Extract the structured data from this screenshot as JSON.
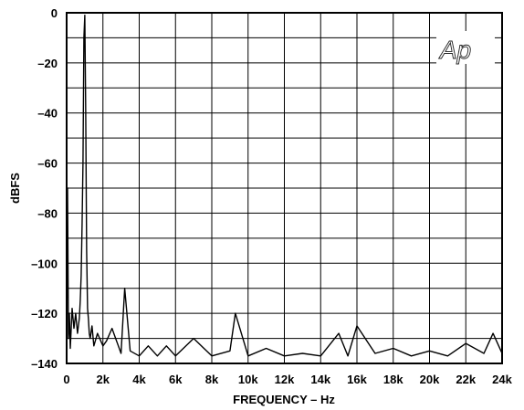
{
  "chart_data": {
    "type": "line",
    "title": "",
    "xlabel": "FREQUENCY – Hz",
    "ylabel": "dBFS",
    "xlim": [
      0,
      24000
    ],
    "ylim": [
      -140,
      0
    ],
    "x_tick_labels": [
      "0",
      "2k",
      "4k",
      "6k",
      "8k",
      "10k",
      "12k",
      "14k",
      "16k",
      "18k",
      "20k",
      "22k",
      "24k"
    ],
    "y_tick_labels": [
      "0",
      "–20",
      "–40",
      "–60",
      "–80",
      "–100",
      "–120",
      "–140"
    ],
    "grid": true,
    "logo_text": "Ap",
    "series": [
      {
        "x": [
          0,
          50,
          100,
          150,
          200,
          300,
          400,
          500,
          600,
          700,
          750,
          800,
          850,
          900,
          950,
          1000,
          1050,
          1100,
          1150,
          1200,
          1250,
          1300,
          1400,
          1500,
          1700,
          2000,
          2200,
          2500,
          3000,
          3200,
          3500,
          4000,
          4500,
          5000,
          5500,
          6000,
          7000,
          8000,
          9000,
          9300,
          10000,
          11000,
          12000,
          13000,
          14000,
          15000,
          15500,
          16000,
          17000,
          18000,
          19000,
          20000,
          21000,
          22000,
          23000,
          23500,
          24000
        ],
        "y": [
          -134,
          -70,
          -130,
          -120,
          -134,
          -118,
          -126,
          -120,
          -128,
          -122,
          -115,
          -105,
          -85,
          -60,
          -10,
          -1,
          -40,
          -95,
          -118,
          -122,
          -128,
          -130,
          -125,
          -133,
          -128,
          -133,
          -131,
          -126,
          -136,
          -110,
          -135,
          -137,
          -133,
          -137,
          -133,
          -137,
          -130,
          -137,
          -135,
          -120,
          -137,
          -134,
          -137,
          -136,
          -137,
          -128,
          -137,
          -125,
          -136,
          -134,
          -137,
          -135,
          -137,
          -132,
          -136,
          -128,
          -136
        ]
      }
    ]
  }
}
